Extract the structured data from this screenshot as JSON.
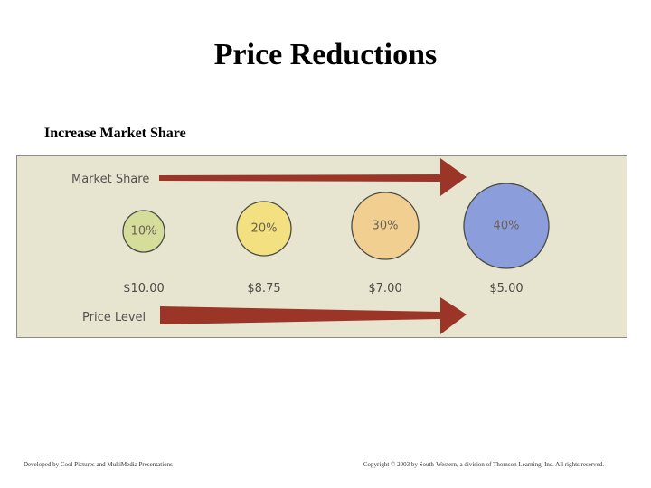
{
  "title": "Price Reductions",
  "subtitle": "Increase Market Share",
  "figure": {
    "top_arrow_label": "Market Share",
    "bottom_arrow_label": "Price Level",
    "steps": [
      {
        "share": "10%",
        "price": "$10.00",
        "color": "#d6dc9a"
      },
      {
        "share": "20%",
        "price": "$8.75",
        "color": "#f3e080"
      },
      {
        "share": "30%",
        "price": "$7.00",
        "color": "#f1cf90"
      },
      {
        "share": "40%",
        "price": "$5.00",
        "color": "#8b9edb"
      }
    ],
    "arrow_color": "#9b3527"
  },
  "footer": {
    "left": "Developed by Cool Pictures and MultiMedia Presentations",
    "right": "Copyright © 2003 by South-Western, a division of Thomson Learning, Inc. All rights reserved."
  }
}
